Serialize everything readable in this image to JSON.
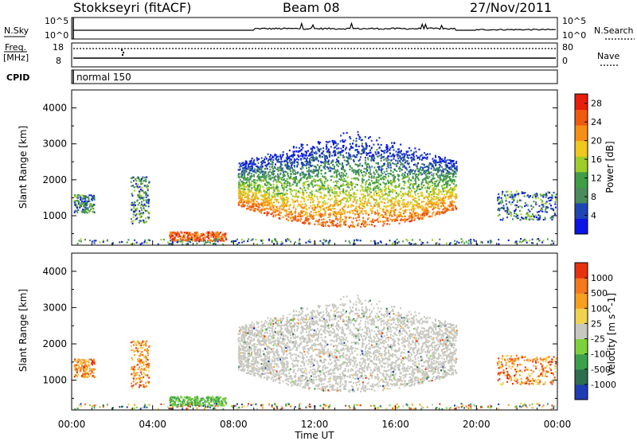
{
  "header": {
    "station": "Stokkseyri (fitACF)",
    "beam": "Beam 08",
    "date": "27/Nov/2011"
  },
  "noise_panel": {
    "left_label": "N.Sky",
    "right_label": "N.Search",
    "left_top_tick": "10^5",
    "left_bottom_tick": "10^0",
    "right_top_tick": "10^5",
    "right_bottom_tick": "10^0"
  },
  "freq_panel": {
    "left_label_1": "Freq.",
    "left_label_2": "[MHz]",
    "left_top_tick": "18",
    "left_bottom_tick": "8",
    "right_label": "Nave",
    "right_top_tick": "80",
    "right_bottom_tick": "0"
  },
  "cpid_panel": {
    "label": "CPID",
    "mode": "normal 150"
  },
  "chart_data": [
    {
      "type": "heatmap",
      "title": "",
      "xlabel": "Time UT",
      "ylabel": "Slant Range [km]",
      "colorbar_label": "Power [dB]",
      "x_ticks": [
        "00:00",
        "04:00",
        "08:00",
        "12:00",
        "16:00",
        "20:00",
        "00:00"
      ],
      "xlim_hours": [
        0,
        24
      ],
      "ylim_km": [
        180,
        4500
      ],
      "y_ticks": [
        1000,
        2000,
        3000,
        4000
      ],
      "colorbar_ticks": [
        4,
        8,
        12,
        16,
        20,
        24,
        28
      ],
      "colorbar_range": [
        0,
        30
      ],
      "colorbar_colors": [
        "#0a14e6",
        "#1e46b4",
        "#4a8c5c",
        "#3f9e46",
        "#9ecd2a",
        "#f0c81e",
        "#f59014",
        "#f05a0f",
        "#e61e0a"
      ]
    },
    {
      "type": "heatmap",
      "title": "",
      "xlabel": "Time UT",
      "ylabel": "Slant Range [km]",
      "colorbar_label": "Velocity [m s^-1]",
      "x_ticks": [
        "00:00",
        "04:00",
        "08:00",
        "12:00",
        "16:00",
        "20:00",
        "00:00"
      ],
      "xlim_hours": [
        0,
        24
      ],
      "ylim_km": [
        180,
        4500
      ],
      "y_ticks": [
        1000,
        2000,
        3000,
        4000
      ],
      "colorbar_ticks": [
        "1000",
        "500",
        "100",
        "25",
        "-25",
        "-100",
        "-500",
        "-1000"
      ],
      "colorbar_colors": [
        "#1e3cb4",
        "#2d6e50",
        "#3ca04b",
        "#7dd23c",
        "#c8c8c0",
        "#f0d250",
        "#f5a01e",
        "#f5781e",
        "#e6320f"
      ]
    }
  ]
}
